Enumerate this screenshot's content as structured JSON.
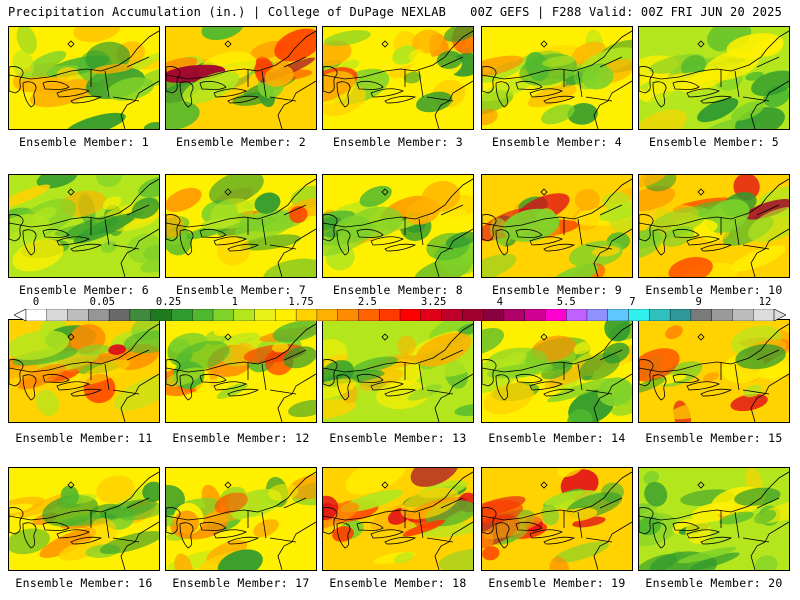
{
  "header": {
    "title_left": "Precipitation Accumulation (in.) | College of DuPage NEXLAB",
    "title_right": "00Z GEFS | F288 Valid: 00Z FRI JUN 20 2025"
  },
  "panels": [
    {
      "label": "Ensemble Member: 1",
      "intensity": 0.45,
      "seed": 1
    },
    {
      "label": "Ensemble Member: 2",
      "intensity": 0.85,
      "seed": 2
    },
    {
      "label": "Ensemble Member: 3",
      "intensity": 0.6,
      "seed": 3
    },
    {
      "label": "Ensemble Member: 4",
      "intensity": 0.5,
      "seed": 4
    },
    {
      "label": "Ensemble Member: 5",
      "intensity": 0.3,
      "seed": 5
    },
    {
      "label": "Ensemble Member: 6",
      "intensity": 0.35,
      "seed": 6
    },
    {
      "label": "Ensemble Member: 7",
      "intensity": 0.55,
      "seed": 7
    },
    {
      "label": "Ensemble Member: 8",
      "intensity": 0.5,
      "seed": 8
    },
    {
      "label": "Ensemble Member: 9",
      "intensity": 0.75,
      "seed": 9
    },
    {
      "label": "Ensemble Member: 10",
      "intensity": 0.8,
      "seed": 10
    },
    {
      "label": "Ensemble Member: 11",
      "intensity": 0.75,
      "seed": 11
    },
    {
      "label": "Ensemble Member: 12",
      "intensity": 0.6,
      "seed": 12
    },
    {
      "label": "Ensemble Member: 13",
      "intensity": 0.35,
      "seed": 13
    },
    {
      "label": "Ensemble Member: 14",
      "intensity": 0.5,
      "seed": 14
    },
    {
      "label": "Ensemble Member: 15",
      "intensity": 0.7,
      "seed": 15
    },
    {
      "label": "Ensemble Member: 16",
      "intensity": 0.45,
      "seed": 16
    },
    {
      "label": "Ensemble Member: 17",
      "intensity": 0.6,
      "seed": 17
    },
    {
      "label": "Ensemble Member: 18",
      "intensity": 0.85,
      "seed": 18
    },
    {
      "label": "Ensemble Member: 19",
      "intensity": 0.7,
      "seed": 19
    },
    {
      "label": "Ensemble Member: 20",
      "intensity": 0.3,
      "seed": 20
    }
  ],
  "colorbar": {
    "tick_labels": [
      "0",
      "0.05",
      "0.25",
      "1",
      "1.75",
      "2.5",
      "3.25",
      "4",
      "5.5",
      "7",
      "9",
      "12"
    ],
    "colors": [
      "#ffffff",
      "#d9d9d9",
      "#bdbdbd",
      "#969696",
      "#6a6a6a",
      "#3f8a3f",
      "#1f7a1f",
      "#2f9a2f",
      "#4fb82f",
      "#7fd22a",
      "#b4e61e",
      "#e8f01a",
      "#fff000",
      "#ffd200",
      "#ffb000",
      "#ff8c00",
      "#ff6400",
      "#ff3a00",
      "#ff0000",
      "#e0001a",
      "#c0002a",
      "#a00030",
      "#8a0040",
      "#b0006a",
      "#d00090",
      "#ff00d0",
      "#c060ff",
      "#9090ff",
      "#60c8ff",
      "#30f0f0",
      "#30c0c0",
      "#309898",
      "#7a7a7a",
      "#9a9a9a",
      "#bcbcbc",
      "#dcdcdc"
    ]
  }
}
